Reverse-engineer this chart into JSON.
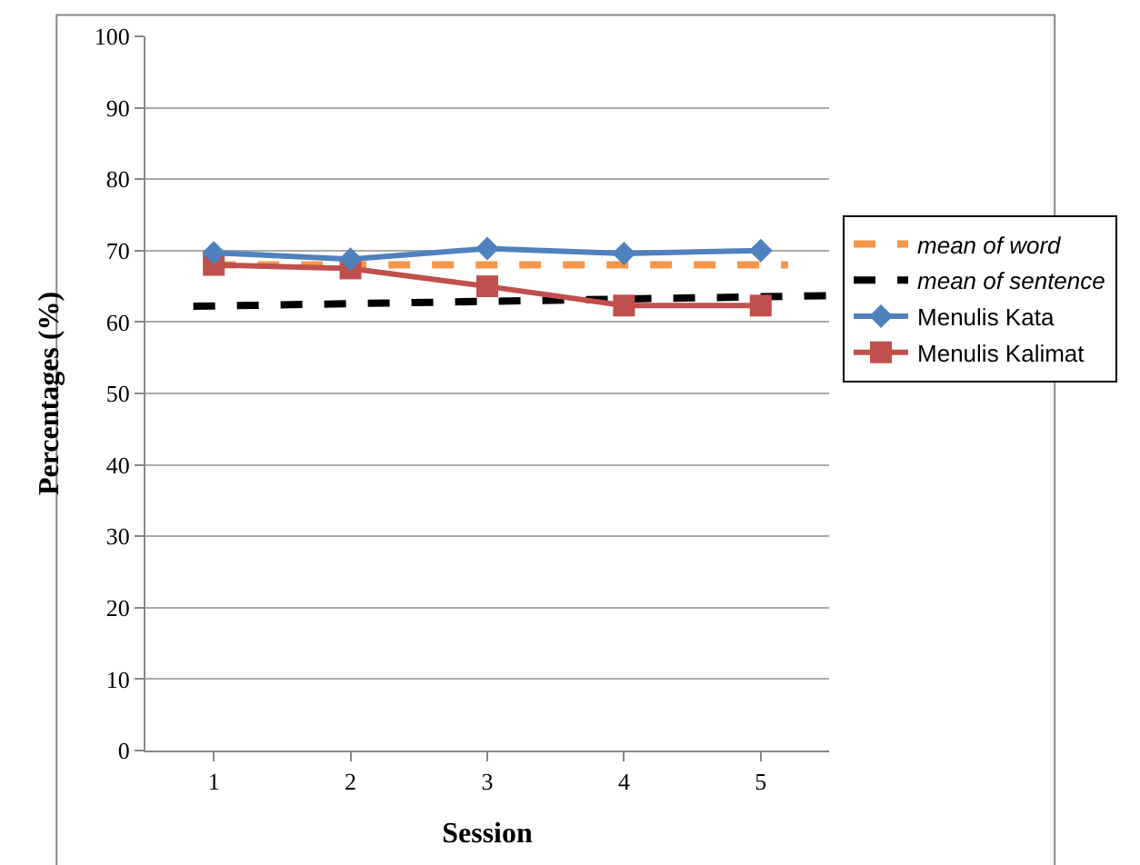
{
  "chart_data": {
    "type": "line",
    "xlabel": "Session",
    "ylabel": "Percentages (%)",
    "x": [
      1,
      2,
      3,
      4,
      5
    ],
    "xlim": [
      0.5,
      5.5
    ],
    "xticks": [
      1,
      2,
      3,
      4,
      5
    ],
    "ylim": [
      0,
      100
    ],
    "yticks": [
      0,
      10,
      20,
      30,
      40,
      50,
      60,
      70,
      80,
      90,
      100
    ],
    "grid": "y",
    "legend": "right",
    "series": [
      {
        "name": "mean of word",
        "color": "#f79646",
        "line_style": "dashed",
        "marker": "none",
        "x": [
          1,
          5.2
        ],
        "values": [
          68,
          68
        ]
      },
      {
        "name": "mean of sentence",
        "color": "#000000",
        "line_style": "dashed",
        "marker": "none",
        "x": [
          0.85,
          5.5
        ],
        "values": [
          62.2,
          63.7
        ]
      },
      {
        "name": "Menulis Kata",
        "color": "#4f81bd",
        "marker": "diamond",
        "line_style": "solid",
        "values": [
          69.7,
          68.8,
          70.3,
          69.6,
          70
        ]
      },
      {
        "name": "Menulis Kalimat",
        "color": "#c0504d",
        "marker": "square",
        "line_style": "solid",
        "values": [
          68,
          67.5,
          65,
          62.3,
          62.3
        ]
      }
    ]
  }
}
